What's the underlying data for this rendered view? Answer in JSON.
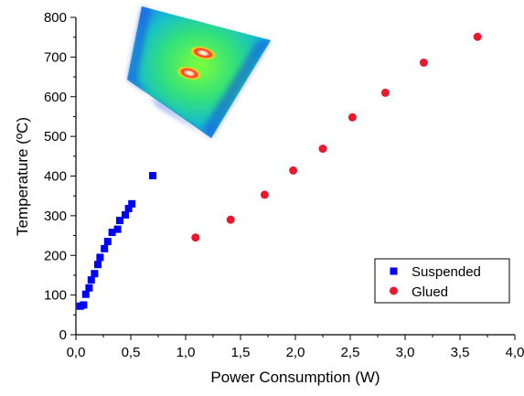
{
  "chart_data": {
    "type": "scatter",
    "xlabel": "Power Consumption (W)",
    "ylabel": "Temperature (ºC)",
    "xlim": [
      0.0,
      4.0
    ],
    "ylim": [
      0,
      800
    ],
    "x_ticks": [
      "0,0",
      "0,5",
      "1,0",
      "1,5",
      "2,0",
      "2,5",
      "3,0",
      "3,5",
      "4,0"
    ],
    "y_ticks": [
      "0",
      "100",
      "200",
      "300",
      "400",
      "500",
      "600",
      "700",
      "800"
    ],
    "grid": false,
    "legend_position": "bottom-right",
    "series": [
      {
        "name": "Suspended",
        "marker": "square",
        "color": "#0000ff",
        "points": [
          [
            0.04,
            72
          ],
          [
            0.07,
            75
          ],
          [
            0.09,
            102
          ],
          [
            0.12,
            118
          ],
          [
            0.14,
            138
          ],
          [
            0.17,
            154
          ],
          [
            0.2,
            177
          ],
          [
            0.22,
            195
          ],
          [
            0.26,
            217
          ],
          [
            0.29,
            235
          ],
          [
            0.33,
            258
          ],
          [
            0.38,
            266
          ],
          [
            0.4,
            288
          ],
          [
            0.45,
            302
          ],
          [
            0.48,
            318
          ],
          [
            0.51,
            330
          ],
          [
            0.7,
            401
          ]
        ]
      },
      {
        "name": "Glued",
        "marker": "circle",
        "color": "#e8192c",
        "points": [
          [
            1.09,
            245
          ],
          [
            1.41,
            290
          ],
          [
            1.72,
            353
          ],
          [
            1.98,
            414
          ],
          [
            2.25,
            469
          ],
          [
            2.52,
            548
          ],
          [
            2.82,
            610
          ],
          [
            3.17,
            686
          ],
          [
            3.66,
            751
          ]
        ]
      }
    ],
    "inset_image": "thermal-map"
  }
}
